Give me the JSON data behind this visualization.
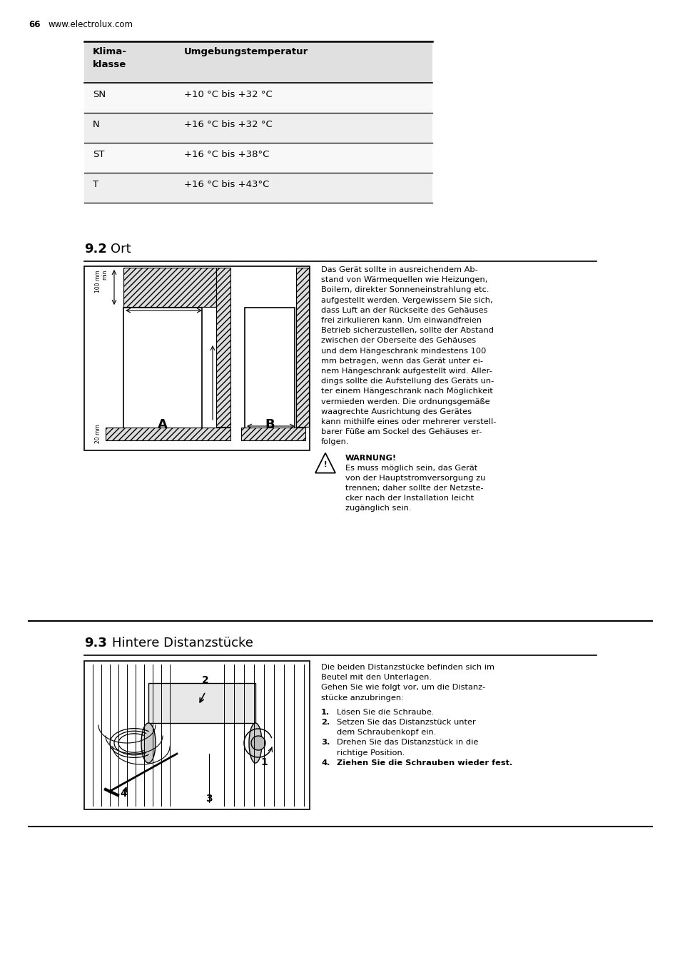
{
  "page_num": "66",
  "website": "www.electrolux.com",
  "bg_color": "#ffffff",
  "table": {
    "header_col1": "Klima-\nklasse",
    "header_col2": "Umgebungstemperatur",
    "rows": [
      [
        "SN",
        "+10 °C bis +32 °C"
      ],
      [
        "N",
        "+16 °C bis +32 °C"
      ],
      [
        "ST",
        "+16 °C bis +38°C"
      ],
      [
        "T",
        "+16 °C bis +43°C"
      ]
    ],
    "header_bg": "#e0e0e0",
    "row_bg_alt": "#eeeeee",
    "row_bg_even": "#f8f8f8"
  },
  "section_92": {
    "number": "9.2",
    "title": "Ort",
    "text_lines": [
      "Das Gerät sollte in ausreichendem Ab-",
      "stand von Wärmequellen wie Heizungen,",
      "Boilern, direkter Sonneneinstrahlung etc.",
      "aufgestellt werden. Vergewissern Sie sich,",
      "dass Luft an der Rückseite des Gehäuses",
      "frei zirkulieren kann. Um einwandfreien",
      "Betrieb sicherzustellen, sollte der Abstand",
      "zwischen der Oberseite des Gehäuses",
      "und dem Hängeschrank mindestens 100",
      "mm betragen, wenn das Gerät unter ei-",
      "nem Hängeschrank aufgestellt wird. Aller-",
      "dings sollte die Aufstellung des Geräts un-",
      "ter einem Hängeschrank nach Möglichkeit",
      "vermieden werden. Die ordnungsgemäße",
      "waagrechte Ausrichtung des Gerätes",
      "kann mithilfe eines oder mehrerer verstell-",
      "barer Füße am Sockel des Gehäuses er-",
      "folgen."
    ],
    "warning_title": "WARNUNG!",
    "warning_lines": [
      "Es muss möglich sein, das Gerät",
      "von der Hauptstromversorgung zu",
      "trennen; daher sollte der Netzste-",
      "cker nach der Installation leicht",
      "zugänglich sein."
    ]
  },
  "section_93": {
    "number": "9.3",
    "title": "Hintere Distanzstücke",
    "intro_lines": [
      "Die beiden Distanzstücke befinden sich im",
      "Beutel mit den Unterlagen.",
      "Gehen Sie wie folgt vor, um die Distanz-",
      "stücke anzubringen:"
    ],
    "steps": [
      [
        "Lösen Sie die Schraube."
      ],
      [
        "Setzen Sie das Distanzstück unter",
        "dem Schraubenkopf ein."
      ],
      [
        "Drehen Sie das Distanzstück in die",
        "richtige Position."
      ],
      [
        "Ziehen Sie die Schrauben wieder fest."
      ]
    ],
    "step4_bold": true
  }
}
